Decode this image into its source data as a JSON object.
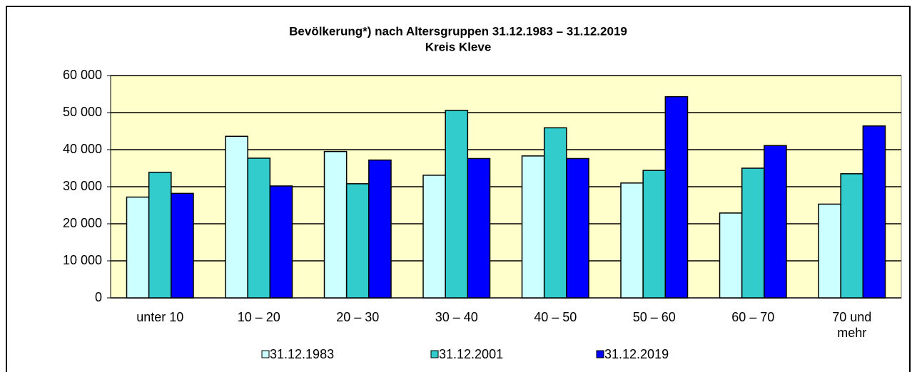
{
  "chart_data": {
    "type": "bar",
    "title": "Bevölkerung*) nach Altersgruppen 31.12.1983 – 31.12.2019",
    "subtitle": "Kreis Kleve",
    "categories": [
      "unter 10",
      "10 – 20",
      "20 – 30",
      "30 – 40",
      "40 – 50",
      "50 – 60",
      "60 – 70",
      "70 und mehr"
    ],
    "series": [
      {
        "name": "31.12.1983",
        "color": "#ccffff",
        "values": [
          27200,
          43600,
          39500,
          33100,
          38300,
          31000,
          22900,
          25300
        ]
      },
      {
        "name": "31.12.2001",
        "color": "#33cccc",
        "values": [
          33900,
          37700,
          30800,
          50600,
          45900,
          34400,
          35000,
          33500
        ]
      },
      {
        "name": "31.12.2019",
        "color": "#0000ff",
        "values": [
          28200,
          30200,
          37200,
          37600,
          37600,
          54300,
          41100,
          46400
        ]
      }
    ],
    "ylim": [
      0,
      60000
    ],
    "yticks": [
      0,
      {
        "value": 10000,
        "label": "10 000"
      },
      {
        "value": 20000,
        "label": "20 000"
      },
      {
        "value": 30000,
        "label": "30 000"
      },
      {
        "value": 40000,
        "label": "40 000"
      },
      {
        "value": 50000,
        "label": "50 000"
      },
      {
        "value": 60000,
        "label": "60 000"
      }
    ],
    "grid": true,
    "legend": "bottom",
    "plot_background": "#ffffcc"
  }
}
